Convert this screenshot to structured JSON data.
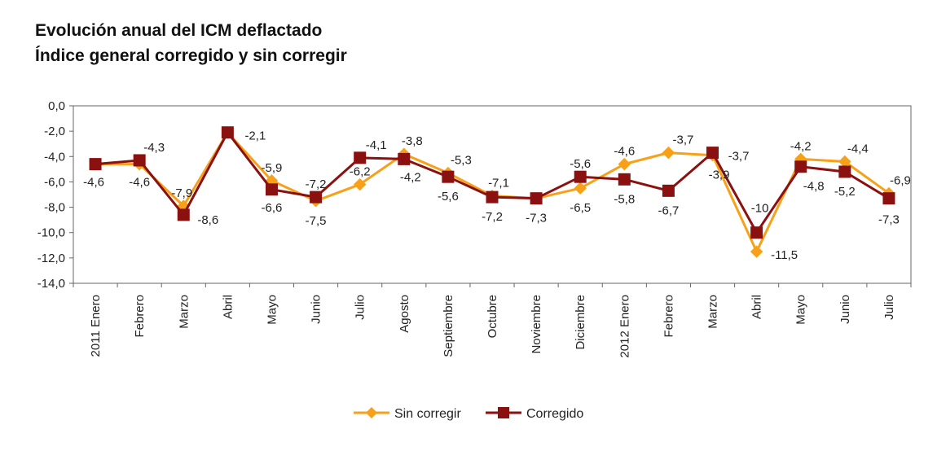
{
  "chart_data": {
    "type": "line",
    "title": "Evolución anual del ICM deflactado",
    "subtitle": "Índice general corregido y sin corregir",
    "xlabel": "",
    "ylabel": "",
    "ylim": [
      -14,
      0
    ],
    "yticks": [
      "0,0",
      "-2,0",
      "-4,0",
      "-6,0",
      "-8,0",
      "-10,0",
      "-12,0",
      "-14,0"
    ],
    "grid": false,
    "legend_position": "bottom",
    "categories": [
      "2011 Enero",
      "Febrero",
      "Marzo",
      "Abril",
      "Mayo",
      "Junio",
      "Julio",
      "Agosto",
      "Septiembre",
      "Octubre",
      "Noviembre",
      "Diciembre",
      "2012 Enero",
      "Febrero",
      "Marzo",
      "Abril",
      "Mayo",
      "Junio",
      "Julio"
    ],
    "series": [
      {
        "name": "Sin corregir",
        "color": "#F7A11A",
        "marker": "diamond",
        "values": [
          -4.6,
          -4.6,
          -7.9,
          -2.1,
          -5.9,
          -7.5,
          -6.2,
          -3.8,
          -5.3,
          -7.1,
          -7.3,
          -6.5,
          -4.6,
          -3.7,
          -3.9,
          -11.5,
          -4.2,
          -4.4,
          -6.9
        ],
        "labels": [
          "",
          "-4,6",
          "-7,9",
          "",
          "-5,9",
          "-7,5",
          "-6,2",
          "-3,8",
          "-5,3",
          "-7,1",
          "",
          "-6,5",
          "-4,6",
          "-3,7",
          "-3,9",
          "-11,5",
          "-4,2",
          "-4,4",
          "-6,9"
        ]
      },
      {
        "name": "Corregido",
        "color": "#8B1010",
        "marker": "square",
        "values": [
          -4.6,
          -4.3,
          -8.6,
          -2.1,
          -6.6,
          -7.2,
          -4.1,
          -4.2,
          -5.6,
          -7.2,
          -7.3,
          -5.6,
          -5.8,
          -6.7,
          -3.7,
          -10,
          -4.8,
          -5.2,
          -7.3
        ],
        "labels": [
          "-4,6",
          "-4,3",
          "-8,6",
          "-2,1",
          "-6,6",
          "-7,2",
          "-4,1",
          "-4,2",
          "-5,6",
          "-7,2",
          "-7,3",
          "-5,6",
          "-5,8",
          "-6,7",
          "-3,7",
          "-10",
          "-4,8",
          "-5,2",
          "-7,3"
        ]
      }
    ]
  }
}
